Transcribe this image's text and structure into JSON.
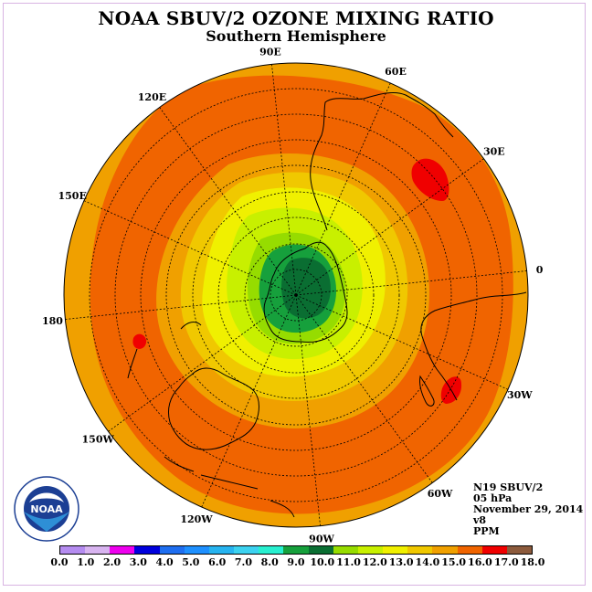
{
  "title": "NOAA SBUV/2 OZONE MIXING RATIO",
  "subtitle": "Southern Hemisphere",
  "longitude_labels": [
    {
      "text": "0",
      "lon": 0
    },
    {
      "text": "30W",
      "lon": -30
    },
    {
      "text": "60W",
      "lon": -60
    },
    {
      "text": "90W",
      "lon": -90
    },
    {
      "text": "120W",
      "lon": -120
    },
    {
      "text": "150W",
      "lon": -150
    },
    {
      "text": "180",
      "lon": 180
    },
    {
      "text": "150E",
      "lon": 150
    },
    {
      "text": "120E",
      "lon": 120
    },
    {
      "text": "90E",
      "lon": 90
    },
    {
      "text": "60E",
      "lon": 60
    },
    {
      "text": "30E",
      "lon": 30
    }
  ],
  "info": {
    "line1": "N19 SBUV/2",
    "line2": "05 hPa",
    "line3": "November 29, 2014",
    "line4": "v8",
    "line5": "PPM"
  },
  "colorbar": {
    "unit": "PPM",
    "ticks": [
      "0.0",
      "1.0",
      "2.0",
      "3.0",
      "4.0",
      "5.0",
      "6.0",
      "7.0",
      "8.0",
      "9.0",
      "10.0",
      "11.0",
      "12.0",
      "13.0",
      "14.0",
      "15.0",
      "16.0",
      "17.0",
      "18.0"
    ],
    "colors": [
      "#b58cf0",
      "#d8b4f0",
      "#ee00ee",
      "#0000dd",
      "#1e6ef0",
      "#1e90ff",
      "#27b4f0",
      "#3cd2f0",
      "#28f0d0",
      "#16a03c",
      "#0a6e32",
      "#96dc00",
      "#c8f000",
      "#f0f000",
      "#f0c800",
      "#f0a000",
      "#f06400",
      "#f00000",
      "#8c5a3c"
    ]
  },
  "map_fields": {
    "color_outer": "#f0a000",
    "color_band": "#f06400",
    "color_14": "#f0c800",
    "color_13": "#f0f000",
    "color_12": "#c8f000",
    "color_11": "#96dc00",
    "color_10": "#16a03c",
    "color_9": "#0a6e32",
    "color_max": "#f00000"
  },
  "logo": {
    "text": "NOAA",
    "ring_text": "NATIONAL OCEANIC AND ATMOSPHERIC ADMINISTRATION · U.S. DEPARTMENT OF COMMERCE"
  }
}
